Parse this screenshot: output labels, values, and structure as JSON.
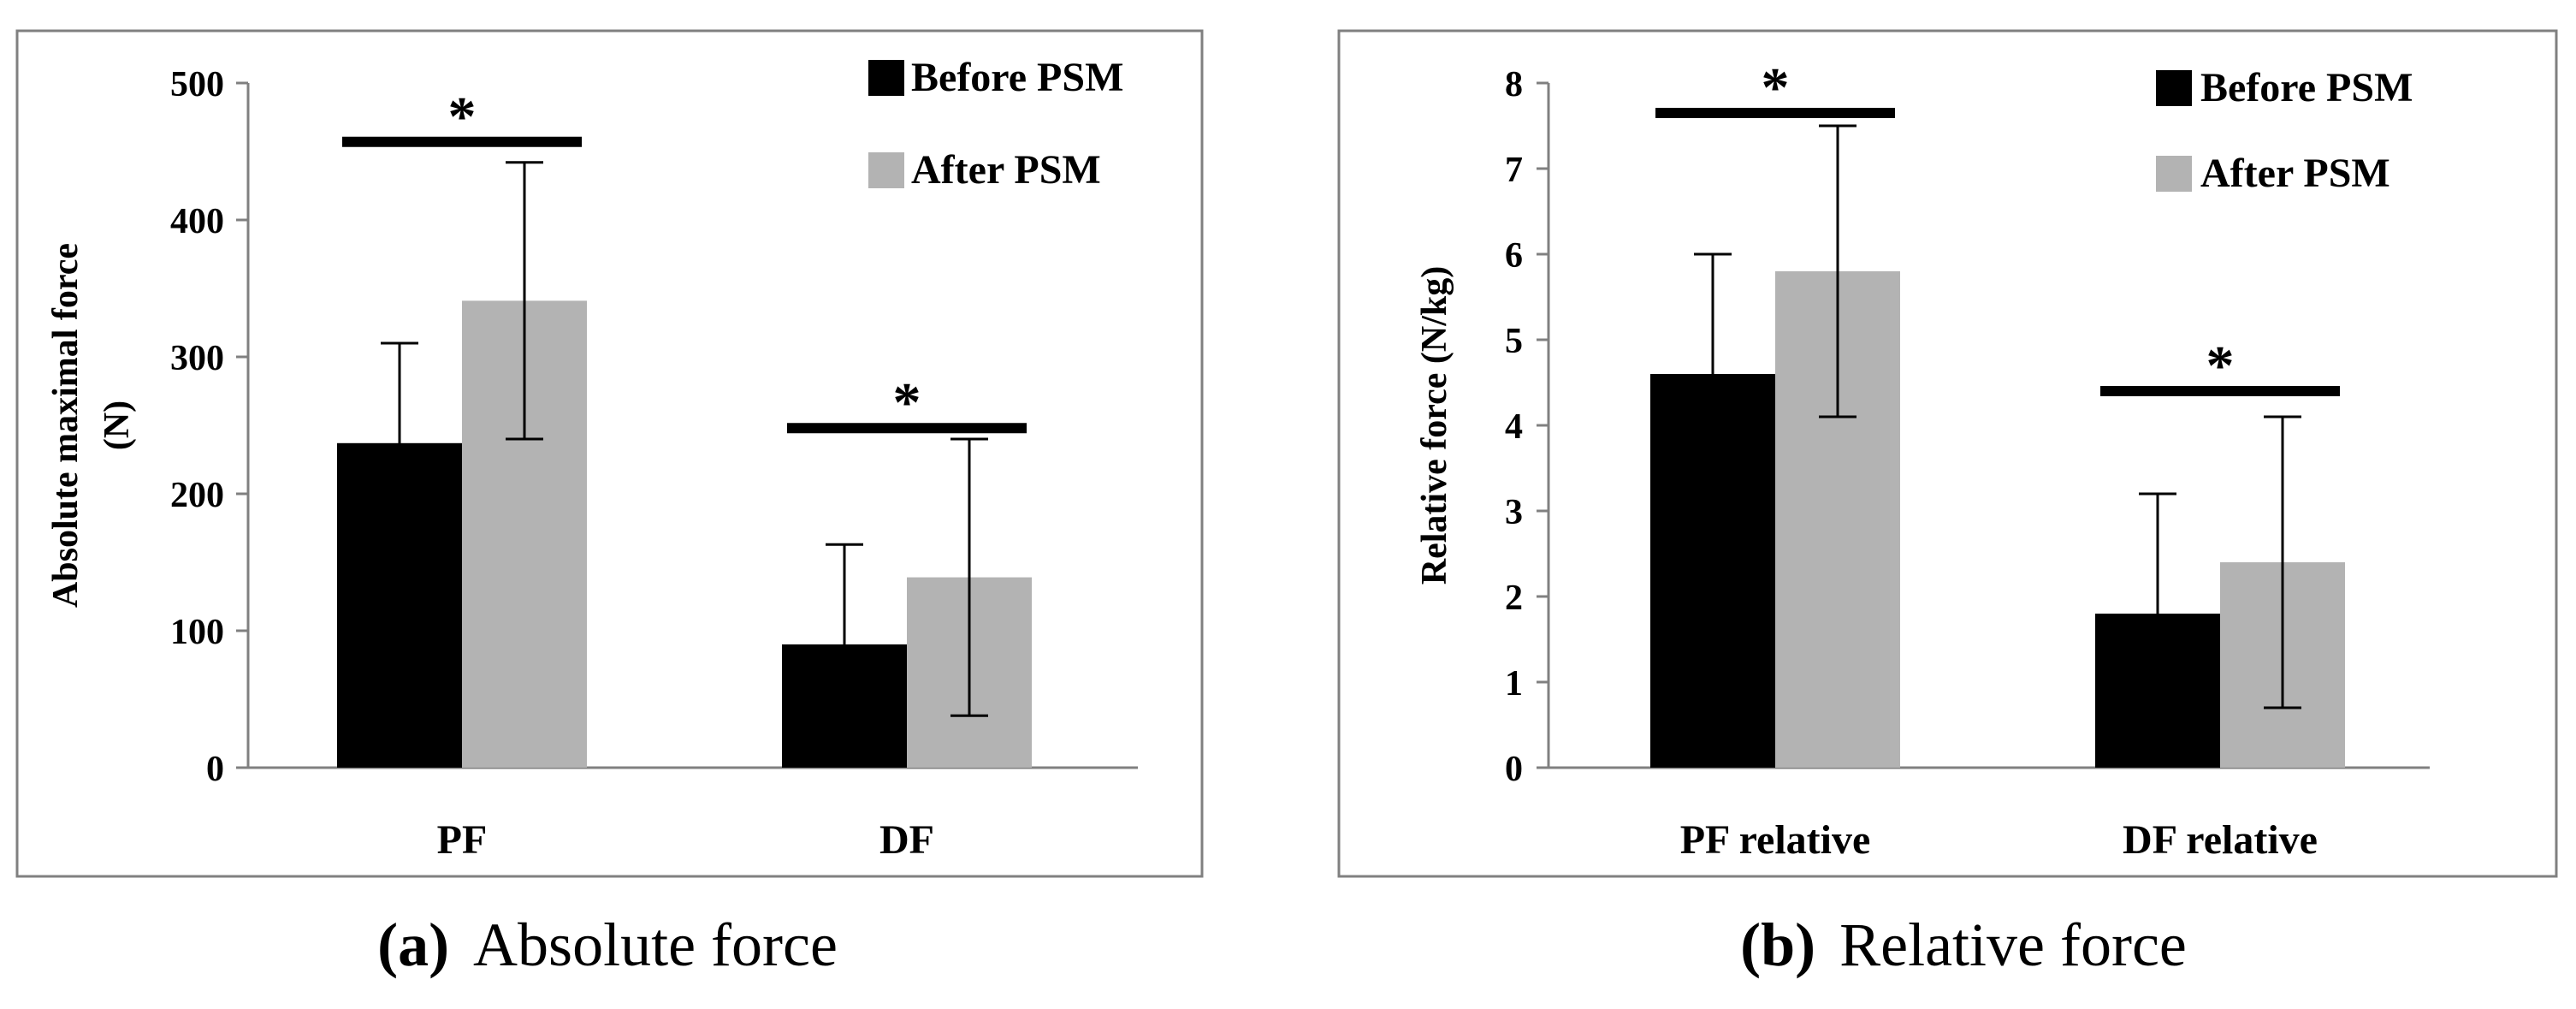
{
  "colors": {
    "before": "#000000",
    "after": "#b3b3b3",
    "axis": "#808080",
    "frame": "#808080",
    "text": "#000000"
  },
  "chart_data": [
    {
      "type": "bar",
      "panel_label": "(a)",
      "caption": "Absolute force",
      "ylabel_lines": [
        "Absolute maximal force",
        "(N)"
      ],
      "categories": [
        "PF",
        "DF"
      ],
      "ylim": [
        0,
        500
      ],
      "yticks": [
        0,
        100,
        200,
        300,
        400,
        500
      ],
      "series": [
        {
          "name": "Before PSM",
          "values": [
            237,
            90
          ],
          "error": [
            73,
            73
          ]
        },
        {
          "name": "After PSM",
          "values": [
            341,
            139
          ],
          "error": [
            101,
            101
          ]
        }
      ],
      "significance": [
        {
          "category": "PF",
          "level": 457,
          "label": "*"
        },
        {
          "category": "DF",
          "level": 248,
          "label": "*"
        }
      ],
      "legend_position": "top-right"
    },
    {
      "type": "bar",
      "panel_label": "(b)",
      "caption": "Relative force",
      "ylabel_lines": [
        "Relative force (N/kg)"
      ],
      "categories": [
        "PF relative",
        "DF relative"
      ],
      "ylim": [
        0,
        8
      ],
      "yticks": [
        0,
        1,
        2,
        3,
        4,
        5,
        6,
        7,
        8
      ],
      "series": [
        {
          "name": "Before PSM",
          "values": [
            4.6,
            1.8
          ],
          "error": [
            1.4,
            1.4
          ]
        },
        {
          "name": "After PSM",
          "values": [
            5.8,
            2.4
          ],
          "error": [
            1.7,
            1.7
          ]
        }
      ],
      "significance": [
        {
          "category": "PF relative",
          "level": 7.65,
          "label": "*"
        },
        {
          "category": "DF relative",
          "level": 4.4,
          "label": "*"
        }
      ],
      "legend_position": "top-right"
    }
  ]
}
